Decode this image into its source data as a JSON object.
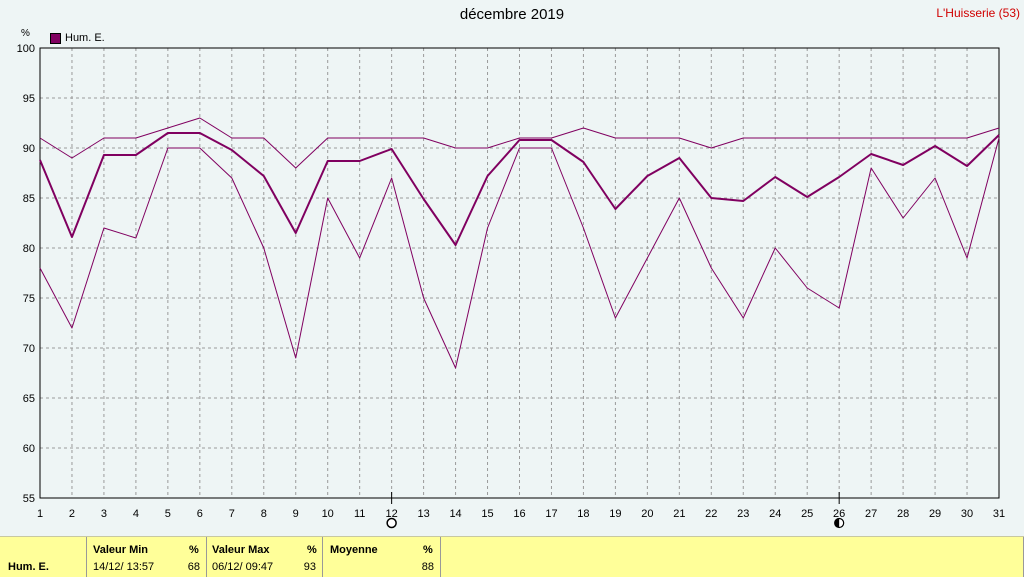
{
  "title": "décembre 2019",
  "station": "L'Huisserie (53)",
  "unit": "%",
  "colors": {
    "series": "#800060",
    "grid": "#9a9a9a",
    "background": "#eef5f5",
    "stats_bg": "#ffff99",
    "station_text": "#d00000"
  },
  "moon_icons": {
    "full_moon_day": 12,
    "last_quarter_day": 26
  },
  "chart_data": {
    "type": "line",
    "title": "décembre 2019",
    "ylabel": "%",
    "ylim": [
      55,
      100
    ],
    "xlim": [
      1,
      31
    ],
    "grid": true,
    "legend": "top-left",
    "x": [
      1,
      2,
      3,
      4,
      5,
      6,
      7,
      8,
      9,
      10,
      11,
      12,
      13,
      14,
      15,
      16,
      17,
      18,
      19,
      20,
      21,
      22,
      23,
      24,
      25,
      26,
      27,
      28,
      29,
      30,
      31
    ],
    "xticks": [
      1,
      2,
      3,
      4,
      5,
      6,
      7,
      8,
      9,
      10,
      11,
      12,
      13,
      14,
      15,
      16,
      17,
      18,
      19,
      20,
      21,
      22,
      23,
      24,
      25,
      26,
      27,
      28,
      29,
      30,
      31
    ],
    "yticks": [
      55,
      60,
      65,
      70,
      75,
      80,
      85,
      90,
      95,
      100
    ],
    "series": [
      {
        "name": "Hum. E.",
        "role": "mean",
        "values": [
          88.8,
          81.1,
          89.3,
          89.3,
          91.5,
          91.5,
          89.8,
          87.2,
          81.5,
          88.7,
          88.7,
          89.9,
          84.9,
          80.3,
          87.2,
          90.8,
          90.8,
          88.6,
          83.9,
          87.2,
          89.0,
          85.0,
          84.7,
          87.1,
          85.1,
          87.1,
          89.4,
          88.3,
          90.2,
          88.2,
          91.3
        ]
      },
      {
        "role": "max",
        "values": [
          91,
          89,
          91,
          91,
          92,
          93,
          91,
          91,
          88,
          91,
          91,
          91,
          91,
          90,
          90,
          91,
          91,
          92,
          91,
          91,
          91,
          90,
          91,
          91,
          91,
          91,
          91,
          91,
          91,
          91,
          92
        ]
      },
      {
        "role": "min",
        "values": [
          78,
          72,
          82,
          81,
          90,
          90,
          87,
          80,
          69,
          85,
          79,
          87,
          75,
          68,
          82,
          90,
          90,
          82,
          73,
          79,
          85,
          78,
          73,
          80,
          76,
          74,
          88,
          83,
          87,
          79,
          91
        ]
      }
    ]
  },
  "stats": {
    "series_label": "Hum. E.",
    "min_header": "Valeur Min",
    "min_unit": "%",
    "min_date": "14/12/  13:57",
    "min_value": "68",
    "max_header": "Valeur Max",
    "max_unit": "%",
    "max_date": "06/12/  09:47",
    "max_value": "93",
    "avg_header": "Moyenne",
    "avg_unit": "%",
    "avg_value": "88"
  }
}
